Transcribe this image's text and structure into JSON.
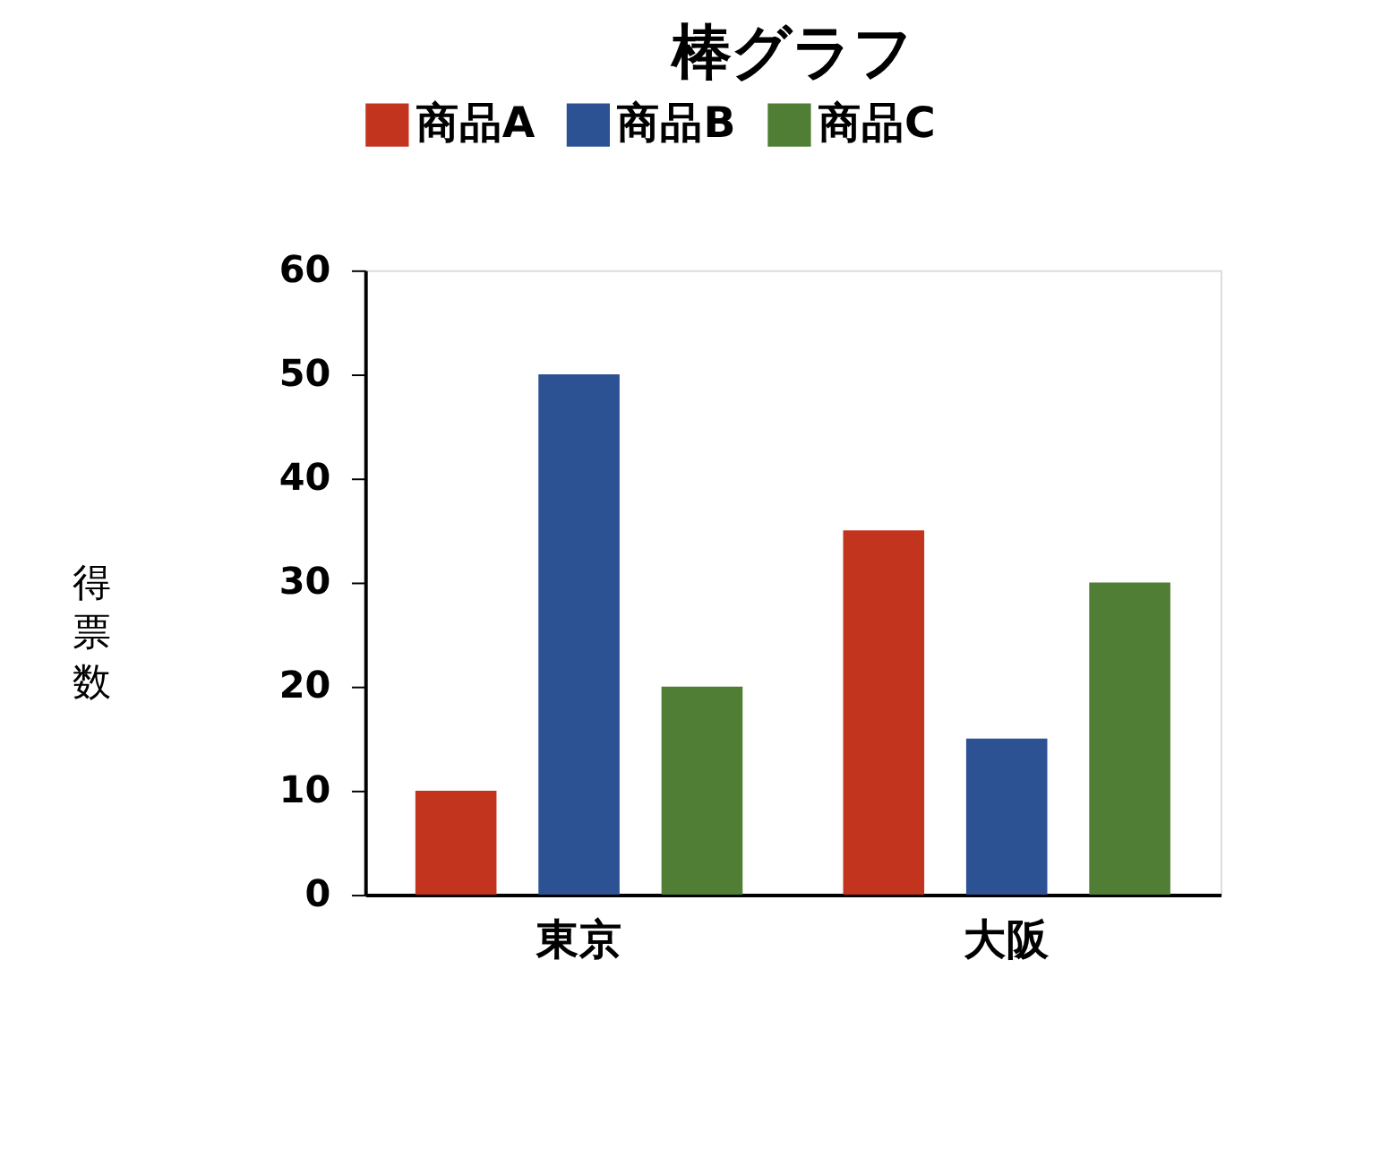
{
  "chart_data": {
    "type": "bar",
    "title": "棒グラフ",
    "ylabel": "得票数",
    "categories": [
      "東京",
      "大阪"
    ],
    "series": [
      {
        "name": "商品A",
        "color": "#c3341f",
        "values": [
          10,
          35
        ]
      },
      {
        "name": "商品B",
        "color": "#2d5293",
        "values": [
          50,
          15
        ]
      },
      {
        "name": "商品C",
        "color": "#507e34",
        "values": [
          20,
          30
        ]
      }
    ],
    "ylim": [
      0,
      60
    ],
    "yticks": [
      0,
      10,
      20,
      30,
      40,
      50,
      60
    ],
    "grid": false,
    "legend": "top"
  }
}
